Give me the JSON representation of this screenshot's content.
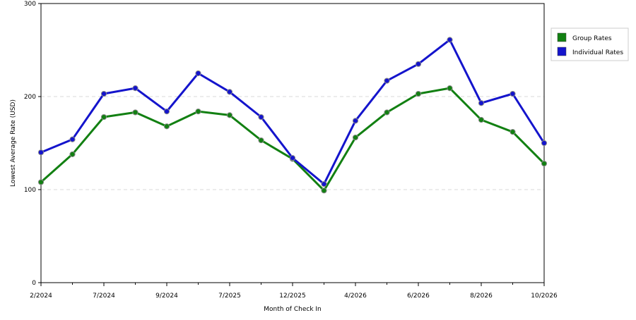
{
  "chart_data": {
    "type": "line",
    "xlabel": "Month of Check In",
    "ylabel": "Lowest Average Rate (USD)",
    "ylim": [
      0,
      300
    ],
    "yticks": [
      0,
      100,
      200,
      300
    ],
    "grid": "horizontal dashed at 100 and 200",
    "legend_position": "right",
    "x_tick_labels": [
      "2/2024",
      "7/2024",
      "9/2024",
      "7/2025",
      "12/2025",
      "4/2026",
      "6/2026",
      "8/2026",
      "10/2026"
    ],
    "series": [
      {
        "name": "Group Rates",
        "color": "#128012",
        "values": [
          108,
          138,
          178,
          183,
          168,
          184,
          180,
          153,
          133,
          99,
          156,
          183,
          203,
          209,
          175,
          162,
          128
        ]
      },
      {
        "name": "Individual Rates",
        "color": "#1414cc",
        "values": [
          140,
          154,
          203,
          209,
          184,
          225,
          205,
          178,
          134,
          106,
          174,
          217,
          235,
          261,
          193,
          203,
          150
        ]
      }
    ]
  }
}
